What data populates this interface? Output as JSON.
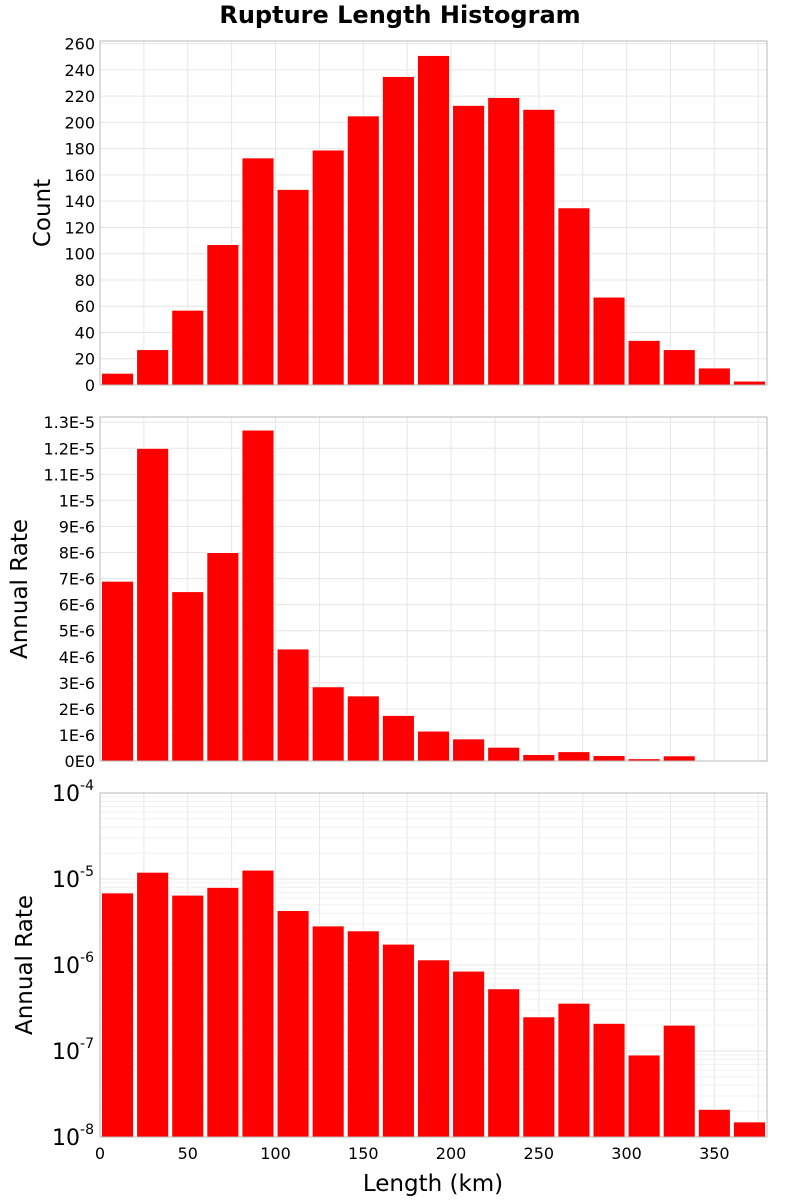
{
  "title": "Rupture Length Histogram",
  "chart_data": [
    {
      "type": "bar",
      "panel": "count",
      "x_bin_starts": [
        0,
        20,
        40,
        60,
        80,
        100,
        120,
        140,
        160,
        180,
        200,
        220,
        240,
        260,
        280,
        300,
        320,
        340,
        360
      ],
      "bin_width": 20,
      "values": [
        9,
        27,
        57,
        107,
        173,
        149,
        179,
        205,
        235,
        251,
        213,
        219,
        210,
        135,
        67,
        34,
        27,
        13,
        3
      ],
      "ylabel": "Count",
      "xlim": [
        0,
        380
      ],
      "ylim": [
        0,
        262
      ],
      "yticks": [
        0,
        20,
        40,
        60,
        80,
        100,
        120,
        140,
        160,
        180,
        200,
        220,
        240,
        260
      ],
      "ytick_labels": [
        "0",
        "20",
        "40",
        "60",
        "80",
        "100",
        "120",
        "140",
        "160",
        "180",
        "200",
        "220",
        "240",
        "260"
      ],
      "color": "#ff0000",
      "grid": true
    },
    {
      "type": "bar",
      "panel": "rate-linear",
      "x_bin_starts": [
        0,
        20,
        40,
        60,
        80,
        100,
        120,
        140,
        160,
        180,
        200,
        220,
        240,
        260,
        280,
        300,
        320,
        340,
        360
      ],
      "bin_width": 20,
      "values": [
        6.9e-06,
        1.2e-05,
        6.5e-06,
        8e-06,
        1.27e-05,
        4.3e-06,
        2.85e-06,
        2.5e-06,
        1.75e-06,
        1.15e-06,
        8.5e-07,
        5.3e-07,
        2.5e-07,
        3.6e-07,
        2.1e-07,
        9e-08,
        2e-07,
        2.1e-08,
        1.5e-08
      ],
      "ylabel": "Annual Rate",
      "xlim": [
        0,
        380
      ],
      "ylim": [
        0,
        1.32e-05
      ],
      "yticks": [
        0,
        1e-06,
        2e-06,
        3e-06,
        4e-06,
        5e-06,
        6e-06,
        7e-06,
        8e-06,
        9e-06,
        1e-05,
        1.1e-05,
        1.2e-05,
        1.3e-05
      ],
      "ytick_labels": [
        "0E0",
        "1E-6",
        "2E-6",
        "3E-6",
        "4E-6",
        "5E-6",
        "6E-6",
        "7E-6",
        "8E-6",
        "9E-6",
        "1E-5",
        "1.1E-5",
        "1.2E-5",
        "1.3E-5"
      ],
      "color": "#ff0000",
      "grid": true
    },
    {
      "type": "bar",
      "panel": "rate-log",
      "x_bin_starts": [
        0,
        20,
        40,
        60,
        80,
        100,
        120,
        140,
        160,
        180,
        200,
        220,
        240,
        260,
        280,
        300,
        320,
        340,
        360
      ],
      "bin_width": 20,
      "values": [
        6.9e-06,
        1.2e-05,
        6.5e-06,
        8e-06,
        1.27e-05,
        4.3e-06,
        2.85e-06,
        2.5e-06,
        1.75e-06,
        1.15e-06,
        8.5e-07,
        5.3e-07,
        2.5e-07,
        3.6e-07,
        2.1e-07,
        9e-08,
        2e-07,
        2.1e-08,
        1.5e-08
      ],
      "ylabel": "Annual Rate",
      "xlabel": "Length (km)",
      "xlim": [
        0,
        380
      ],
      "xticks": [
        0,
        50,
        100,
        150,
        200,
        250,
        300,
        350
      ],
      "xtick_labels": [
        "0",
        "50",
        "100",
        "150",
        "200",
        "250",
        "300",
        "350"
      ],
      "ylim": [
        1e-08,
        0.0001
      ],
      "yscale": "log",
      "ytick_exponents": [
        -8,
        -7,
        -6,
        -5,
        -4
      ],
      "ytick_base": "10",
      "color": "#ff0000",
      "grid": true
    }
  ]
}
